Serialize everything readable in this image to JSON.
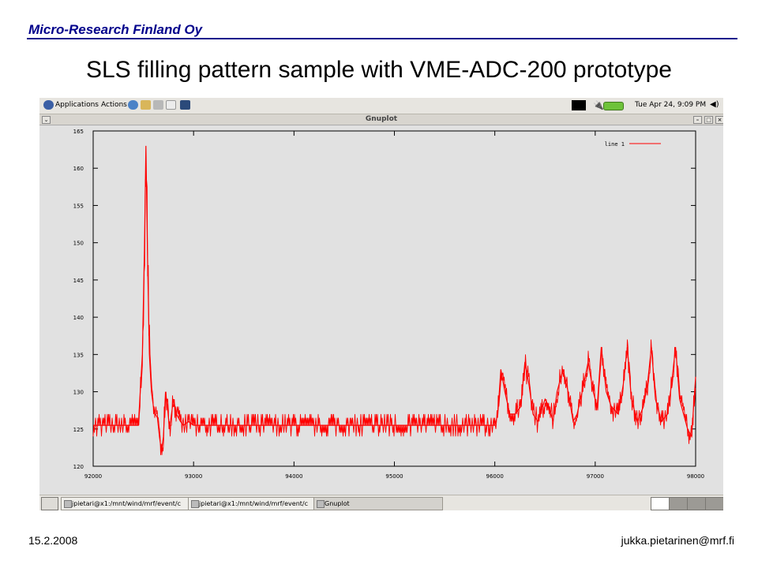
{
  "slide": {
    "company": "Micro-Research Finland Oy",
    "title": "SLS filling pattern sample with VME-ADC-200 prototype",
    "date": "15.2.2008",
    "email": "jukka.pietarinen@mrf.fi"
  },
  "desktop": {
    "top_panel": {
      "menus": [
        "Applications",
        "Actions"
      ],
      "clock": "Tue Apr 24,  9:09 PM",
      "launcher_icons": [
        "browser-icon",
        "mail-icon",
        "editor-icon",
        "notes-icon",
        "terminal-icon"
      ]
    },
    "window": {
      "title": "Gnuplot",
      "buttons": [
        "minimize",
        "maximize",
        "close"
      ]
    },
    "taskbar": {
      "tasks": [
        "jpietari@x1:/mnt/wind/mrf/event/c",
        "jpietari@x1:/mnt/wind/mrf/event/c",
        "Gnuplot"
      ]
    }
  },
  "chart_data": {
    "type": "line",
    "title": "",
    "xlabel": "",
    "ylabel": "",
    "xlim": [
      92000,
      98000
    ],
    "ylim": [
      120,
      165
    ],
    "x_ticks": [
      92000,
      93000,
      94000,
      95000,
      96000,
      97000,
      98000
    ],
    "y_ticks": [
      120,
      125,
      130,
      135,
      140,
      145,
      150,
      155,
      160,
      165
    ],
    "grid": false,
    "legend": "top-right",
    "color": "#ff0000",
    "series": [
      {
        "name": "line 1",
        "x": [
          92000,
          92450,
          92490,
          92510,
          92525,
          92540,
          92560,
          92580,
          92600,
          92620,
          92640,
          92660,
          92680,
          92700,
          92720,
          92740,
          92760,
          92780,
          92800,
          92830,
          92870,
          92900,
          92950,
          93000,
          96000,
          96030,
          96060,
          96100,
          96150,
          96200,
          96260,
          96300,
          96340,
          96380,
          96430,
          96500,
          96540,
          96580,
          96620,
          96680,
          96730,
          96780,
          96820,
          96870,
          96930,
          96980,
          97020,
          97060,
          97110,
          97160,
          97230,
          97280,
          97320,
          97360,
          97420,
          97480,
          97520,
          97560,
          97600,
          97660,
          97720,
          97760,
          97800,
          97840,
          97880,
          97920,
          97960,
          98000
        ],
        "y": [
          125.5,
          125.5,
          135,
          149,
          163,
          149,
          135,
          130,
          128,
          127,
          126.5,
          124,
          122,
          124,
          130,
          128,
          125,
          127,
          129,
          127,
          126,
          125.5,
          126,
          125.5,
          125.5,
          127,
          133,
          130,
          127,
          127,
          128,
          134,
          131,
          127,
          126,
          129,
          128,
          126,
          130,
          133,
          130,
          126,
          127,
          130,
          134,
          130,
          128,
          136,
          130,
          128,
          127,
          131,
          136,
          129,
          126,
          128,
          131,
          136,
          129,
          126,
          127,
          131,
          136,
          129,
          127,
          125,
          124,
          132
        ]
      }
    ]
  }
}
